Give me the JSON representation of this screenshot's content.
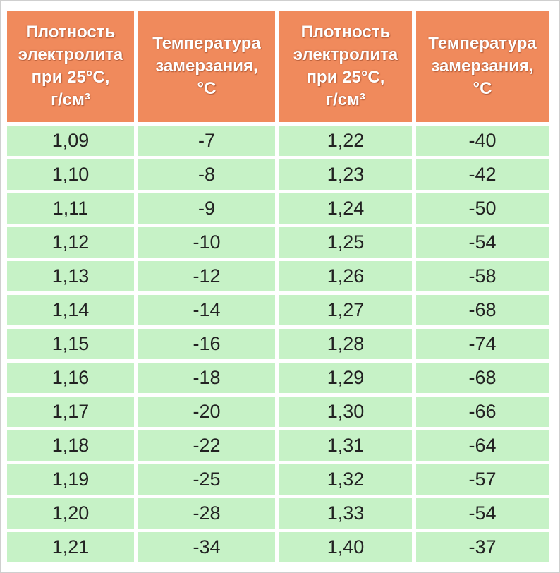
{
  "colors": {
    "header_bg": "#f08a5c",
    "header_text": "#ffffff",
    "cell_bg": "#c6f2c6",
    "cell_text": "#222222"
  },
  "table": {
    "headers": [
      "Плотность\nэлектролита\nпри 25°С,\nг/см³",
      "Температура\nзамерзания,\n°С",
      "Плотность\nэлектролита\nпри 25°С,\nг/см³",
      "Температура\nзамерзания,\n°С"
    ],
    "rows": [
      [
        "1,09",
        "-7",
        "1,22",
        "-40"
      ],
      [
        "1,10",
        "-8",
        "1,23",
        "-42"
      ],
      [
        "1,11",
        "-9",
        "1,24",
        "-50"
      ],
      [
        "1,12",
        "-10",
        "1,25",
        "-54"
      ],
      [
        "1,13",
        "-12",
        "1,26",
        "-58"
      ],
      [
        "1,14",
        "-14",
        "1,27",
        "-68"
      ],
      [
        "1,15",
        "-16",
        "1,28",
        "-74"
      ],
      [
        "1,16",
        "-18",
        "1,29",
        "-68"
      ],
      [
        "1,17",
        "-20",
        "1,30",
        "-66"
      ],
      [
        "1,18",
        "-22",
        "1,31",
        "-64"
      ],
      [
        "1,19",
        "-25",
        "1,32",
        "-57"
      ],
      [
        "1,20",
        "-28",
        "1,33",
        "-54"
      ],
      [
        "1,21",
        "-34",
        "1,40",
        "-37"
      ]
    ]
  }
}
